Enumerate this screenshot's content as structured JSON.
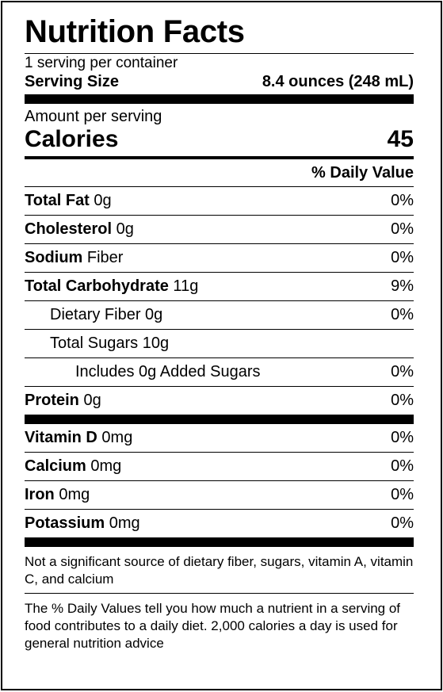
{
  "label": {
    "title": "Nutrition Facts",
    "servings_per_container": "1 serving per container",
    "serving_size_label": "Serving Size",
    "serving_size_value": "8.4 ounces (248 mL)",
    "amount_per_serving": "Amount per serving",
    "calories_label": "Calories",
    "calories_value": "45",
    "daily_value_header": "% Daily Value",
    "nutrients": [
      {
        "name": "Total Fat",
        "amount": " 0g",
        "dv": "0%"
      },
      {
        "name": "Cholesterol",
        "amount": " 0g",
        "dv": "0%"
      },
      {
        "name": "Sodium",
        "amount": " Fiber",
        "dv": "0%"
      },
      {
        "name": "Total Carbohydrate",
        "amount": " 11g",
        "dv": "9%"
      },
      {
        "name": "",
        "amount": "Dietary Fiber 0g",
        "dv": "0%"
      },
      {
        "name": "",
        "amount": "Total Sugars 10g",
        "dv": ""
      },
      {
        "name": "",
        "amount": "Includes 0g Added Sugars",
        "dv": "0%"
      },
      {
        "name": "Protein",
        "amount": " 0g",
        "dv": "0%"
      }
    ],
    "vitamins": [
      {
        "name": "Vitamin D",
        "amount": " 0mg",
        "dv": "0%"
      },
      {
        "name": "Calcium",
        "amount": " 0mg",
        "dv": "0%"
      },
      {
        "name": "Iron",
        "amount": " 0mg",
        "dv": "0%"
      },
      {
        "name": "Potassium",
        "amount": " 0mg",
        "dv": "0%"
      }
    ],
    "footnote_1": "Not a significant source of dietary fiber, sugars, vitamin A, vitamin C, and calcium",
    "footnote_2": "The % Daily Values tell you how much a nutrient in a serving of food contributes to a daily diet. 2,000 calories a day is used for general nutrition advice"
  }
}
